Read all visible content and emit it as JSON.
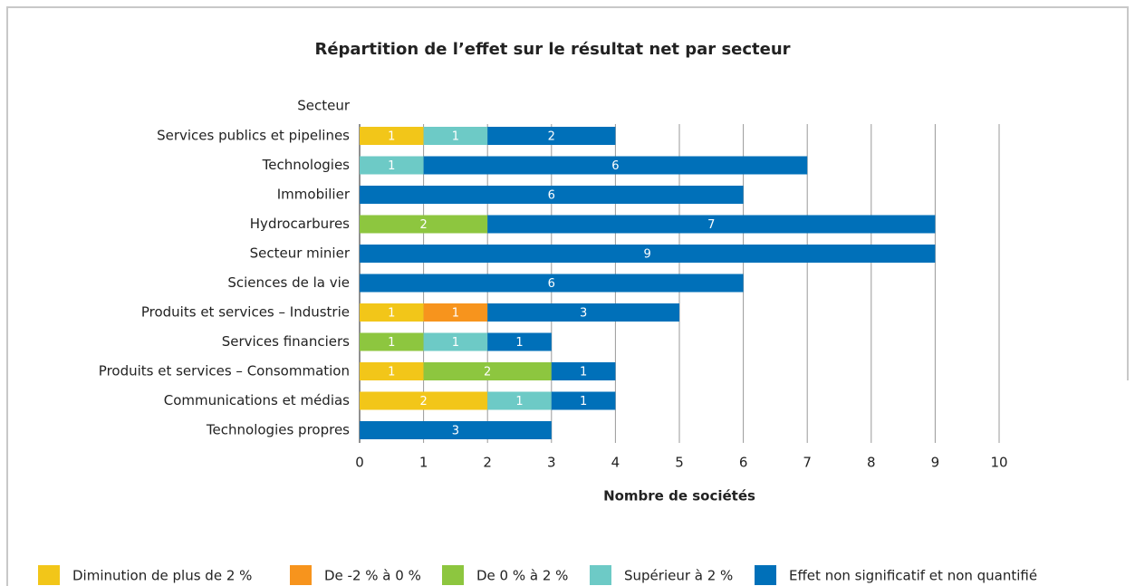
{
  "chart_data": {
    "type": "stacked_barh",
    "title": "Répartition de l’effet sur le résultat net par secteur",
    "y_axis_label": "Secteur",
    "x_axis_label": "Nombre de sociétés",
    "categories": [
      "Services publics et pipelines",
      "Technologies",
      "Immobilier",
      "Hydrocarbures",
      "Secteur minier",
      "Sciences de la vie",
      "Produits et services – Industrie",
      "Services financiers",
      "Produits et services – Consommation",
      "Communications et médias",
      "Technologies propres"
    ],
    "series": [
      {
        "name": "Diminution de plus de 2 %",
        "color": "#f2c619",
        "values": [
          1,
          null,
          null,
          null,
          null,
          null,
          1,
          null,
          1,
          2,
          null
        ]
      },
      {
        "name": "De -2 % à 0 %",
        "color": "#f7941d",
        "values": [
          null,
          null,
          null,
          null,
          null,
          null,
          1,
          null,
          null,
          null,
          null
        ]
      },
      {
        "name": "De 0 % à 2 %",
        "color": "#8dc63f",
        "values": [
          null,
          null,
          null,
          2,
          null,
          null,
          null,
          1,
          2,
          null,
          null
        ]
      },
      {
        "name": "Supérieur à 2 %",
        "color": "#6dcac6",
        "values": [
          1,
          1,
          null,
          null,
          null,
          null,
          null,
          1,
          null,
          1,
          null
        ]
      },
      {
        "name": "Effet non significatif et non quantifié",
        "color": "#0070b9",
        "values": [
          2,
          6,
          6,
          7,
          9,
          6,
          3,
          1,
          1,
          1,
          3
        ]
      }
    ],
    "xlim": [
      0,
      10
    ],
    "xticks": [
      0,
      1,
      2,
      3,
      4,
      5,
      6,
      7,
      8,
      9,
      10
    ],
    "grid": true,
    "legend": "bottom"
  }
}
